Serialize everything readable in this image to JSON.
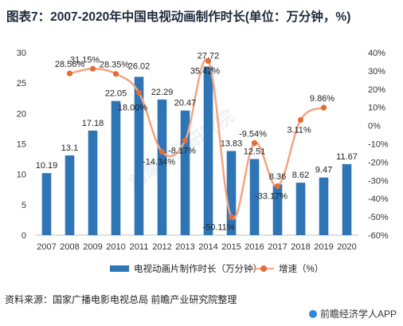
{
  "title": "图表7：2007-2020年中国电视动画制作时长(单位：万分钟，%)",
  "source": "资料来源：国家广播电影电视总局 前瞻产业研究院整理",
  "brand": "前瞻经济学人APP",
  "watermark": "前瞻产业研究院",
  "colors": {
    "bar": "#2e75b6",
    "line": "#f4a582",
    "marker": "#e46c37"
  },
  "chart_data": {
    "type": "bar+line",
    "categories": [
      "2007",
      "2008",
      "2009",
      "2010",
      "2011",
      "2012",
      "2013",
      "2014",
      "2015",
      "2016",
      "2017",
      "2018",
      "2019",
      "2020"
    ],
    "series": [
      {
        "name": "电视动画片制作时长（万分钟）",
        "type": "bar",
        "axis": "left",
        "values": [
          10.19,
          13.1,
          17.18,
          22.05,
          26.02,
          22.29,
          20.47,
          27.72,
          13.83,
          12.51,
          8.36,
          8.62,
          9.47,
          11.67
        ],
        "labels": [
          "10.19",
          "13.1",
          "17.18",
          "22.05",
          "26.02",
          "22.29",
          "20.47",
          "27.72",
          "13.83",
          "12.51",
          "8.36",
          "8.62",
          "9.47",
          "11.67"
        ]
      },
      {
        "name": "增速（%）",
        "type": "line",
        "axis": "right",
        "values": [
          null,
          28.56,
          31.15,
          28.35,
          18.0,
          -14.34,
          -8.17,
          35.42,
          -50.11,
          -9.54,
          -33.17,
          3.11,
          9.86,
          null
        ],
        "labels": [
          null,
          "28.56%",
          "31.15%",
          "28.35%",
          "18.00%",
          "-14.34%",
          "-8.17%",
          "35.42%",
          "-50.11%",
          "-9.54%",
          "-33.17%",
          "3.11%",
          "9.86%",
          null
        ]
      }
    ],
    "left_axis": {
      "ticks": [
        0,
        5,
        10,
        15,
        20,
        25,
        30
      ],
      "ylim": [
        0,
        30
      ]
    },
    "right_axis": {
      "ticks": [
        40,
        30,
        20,
        10,
        0,
        -10,
        -20,
        -30,
        -40,
        -50,
        -60
      ],
      "tick_labels": [
        "40%",
        "30%",
        "20%",
        "10%",
        "0%",
        "-10%",
        "-20%",
        "-30%",
        "-40%",
        "-50%",
        "-60%"
      ],
      "ylim": [
        -60,
        40
      ]
    },
    "grid": false,
    "legend": "bottom"
  }
}
